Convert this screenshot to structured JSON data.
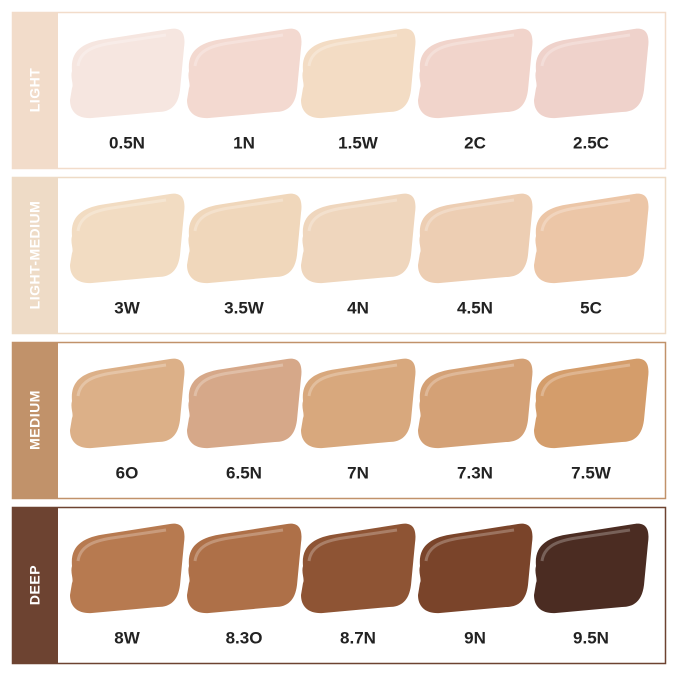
{
  "groups": [
    {
      "label": "LIGHT",
      "color": "#f2dcca",
      "shades": [
        {
          "name": "0.5N",
          "color": "#f6e6e0"
        },
        {
          "name": "1N",
          "color": "#f3d9d0"
        },
        {
          "name": "1.5W",
          "color": "#f3dcc4"
        },
        {
          "name": "2C",
          "color": "#f1d4cb"
        },
        {
          "name": "2.5C",
          "color": "#efd2cb"
        }
      ]
    },
    {
      "label": "LIGHT-MEDIUM",
      "color": "#eedbc6",
      "shades": [
        {
          "name": "3W",
          "color": "#f2dcc2"
        },
        {
          "name": "3.5W",
          "color": "#f0d7bb"
        },
        {
          "name": "4N",
          "color": "#efd6bd"
        },
        {
          "name": "4.5N",
          "color": "#edceb3"
        },
        {
          "name": "5C",
          "color": "#ecc6a7"
        }
      ]
    },
    {
      "label": "MEDIUM",
      "color": "#c1926a",
      "shades": [
        {
          "name": "6O",
          "color": "#dcb088"
        },
        {
          "name": "6.5N",
          "color": "#d6a889"
        },
        {
          "name": "7N",
          "color": "#d8a87d"
        },
        {
          "name": "7.3N",
          "color": "#d4a176"
        },
        {
          "name": "7.5W",
          "color": "#d49d6b"
        }
      ]
    },
    {
      "label": "DEEP",
      "color": "#6d4331",
      "shades": [
        {
          "name": "8W",
          "color": "#b77a50"
        },
        {
          "name": "8.3O",
          "color": "#ae7048"
        },
        {
          "name": "8.7N",
          "color": "#8e5434"
        },
        {
          "name": "9N",
          "color": "#7a442a"
        },
        {
          "name": "9.5N",
          "color": "#4b2c22"
        }
      ]
    }
  ]
}
